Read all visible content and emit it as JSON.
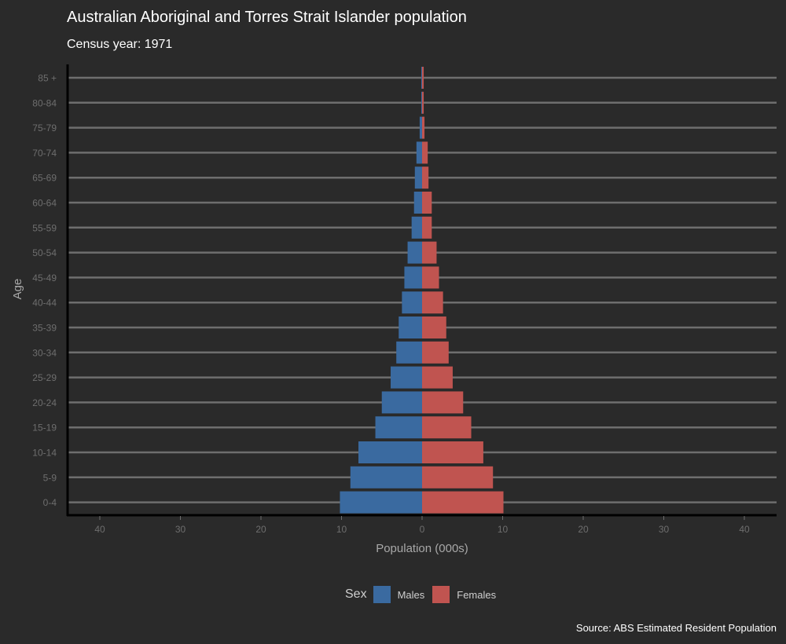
{
  "title": "Australian Aboriginal and Torres Strait Islander population",
  "subtitle": "Census year: 1971",
  "caption": "Source: ABS Estimated Resident Population",
  "colors": {
    "background": "#2a2a2a",
    "males": "#3a6aa0",
    "females": "#c05450",
    "gridline": "#6e6e6e",
    "axis": "#000000",
    "tick_text": "#6e6e6e",
    "axis_title": "#a8a8a8"
  },
  "legend": {
    "title": "Sex",
    "items": [
      {
        "label": "Males",
        "color": "#3a6aa0"
      },
      {
        "label": "Females",
        "color": "#c05450"
      }
    ]
  },
  "chart_data": {
    "type": "bar",
    "orientation": "horizontal",
    "xlabel": "Population (000s)",
    "ylabel": "Age",
    "xlim": [
      -44,
      44
    ],
    "xticks": [
      -40,
      -30,
      -20,
      -10,
      0,
      10,
      20,
      30,
      40
    ],
    "xtick_labels": [
      "40",
      "30",
      "20",
      "10",
      "0",
      "10",
      "20",
      "30",
      "40"
    ],
    "categories": [
      "0-4",
      "5-9",
      "10-14",
      "15-19",
      "20-24",
      "25-29",
      "30-34",
      "35-39",
      "40-44",
      "45-49",
      "50-54",
      "55-59",
      "60-64",
      "65-69",
      "70-74",
      "75-79",
      "80-84",
      "85 +"
    ],
    "series": [
      {
        "name": "Males",
        "values": [
          10.2,
          8.9,
          7.9,
          5.8,
          5.0,
          3.9,
          3.2,
          2.9,
          2.5,
          2.2,
          1.8,
          1.3,
          1.0,
          0.9,
          0.7,
          0.3,
          0.1,
          0.1
        ]
      },
      {
        "name": "Females",
        "values": [
          10.1,
          8.8,
          7.6,
          6.1,
          5.1,
          3.8,
          3.3,
          3.0,
          2.6,
          2.1,
          1.8,
          1.2,
          1.2,
          0.8,
          0.7,
          0.3,
          0.2,
          0.2
        ]
      }
    ],
    "grid": {
      "horizontal": true,
      "vertical": false
    },
    "legend_position": "bottom"
  }
}
